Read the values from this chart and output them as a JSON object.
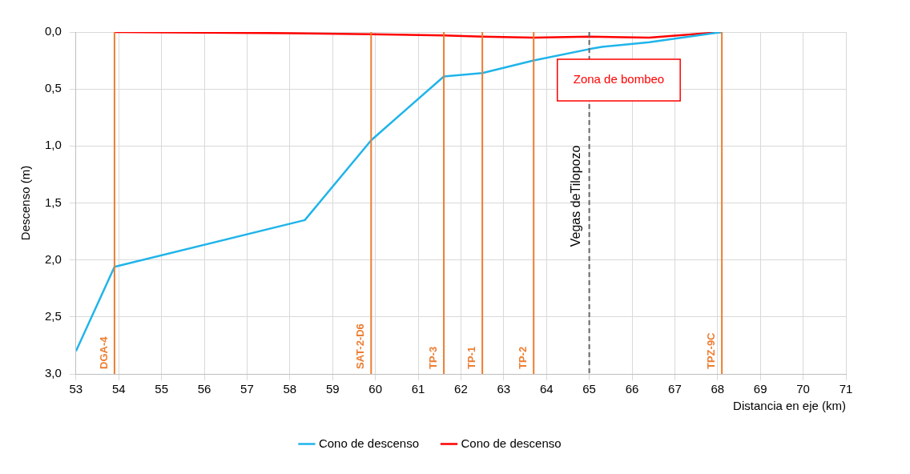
{
  "chart_data": {
    "type": "line",
    "xlabel": "Distancia en eje (km)",
    "ylabel": "Descenso (m)",
    "xlim": [
      53,
      71
    ],
    "xticks": [
      53,
      54,
      55,
      56,
      57,
      58,
      59,
      60,
      61,
      62,
      63,
      64,
      65,
      66,
      67,
      68,
      69,
      70,
      71
    ],
    "ylim": [
      3,
      0
    ],
    "yticks": [
      {
        "value": 0,
        "label": "0,0"
      },
      {
        "value": 0.5,
        "label": "0,5"
      },
      {
        "value": 1,
        "label": "1,0"
      },
      {
        "value": 1.5,
        "label": "1,5"
      },
      {
        "value": 2,
        "label": "2,0"
      },
      {
        "value": 2.5,
        "label": "2,5"
      },
      {
        "value": 3,
        "label": "3,0"
      }
    ],
    "series": [
      {
        "name": "Cono de descenso",
        "color": "#1fb4ea",
        "x": [
          53,
          53.9,
          58.35,
          59.9,
          61.6,
          62.5,
          63.7,
          65,
          65.3,
          66.4,
          68.1
        ],
        "values": [
          2.8,
          2.06,
          1.65,
          0.95,
          0.39,
          0.36,
          0.25,
          0.15,
          0.13,
          0.09,
          0
        ]
      },
      {
        "name": "Cono de descenso",
        "color": "#ff0000",
        "x": [
          53.9,
          58,
          59.9,
          61.6,
          62.5,
          63.7,
          65,
          66.4,
          68.1
        ],
        "values": [
          0,
          0.01,
          0.02,
          0.03,
          0.04,
          0.05,
          0.04,
          0.05,
          0
        ]
      }
    ],
    "ref_lines": [
      {
        "axis": "x",
        "value": 53.9,
        "label": "DGA-4",
        "color": "#ed7d31"
      },
      {
        "axis": "x",
        "value": 59.9,
        "label": "SAT-2-D6",
        "color": "#ed7d31"
      },
      {
        "axis": "x",
        "value": 61.6,
        "label": "TP-3",
        "color": "#ed7d31"
      },
      {
        "axis": "x",
        "value": 62.5,
        "label": "TP-1",
        "color": "#ed7d31"
      },
      {
        "axis": "x",
        "value": 63.7,
        "label": "TP-2",
        "color": "#ed7d31"
      },
      {
        "axis": "x",
        "value": 68.1,
        "label": "TPZ-9C",
        "color": "#ed7d31"
      },
      {
        "axis": "x",
        "value": 65,
        "label": "Vegas deTilopozo",
        "color": "#666666",
        "line_style": "dashed"
      }
    ],
    "annotations": [
      "Zona de bombeo"
    ],
    "grid": true,
    "legend": "bottom",
    "marker": "none",
    "line_style": "solid"
  }
}
